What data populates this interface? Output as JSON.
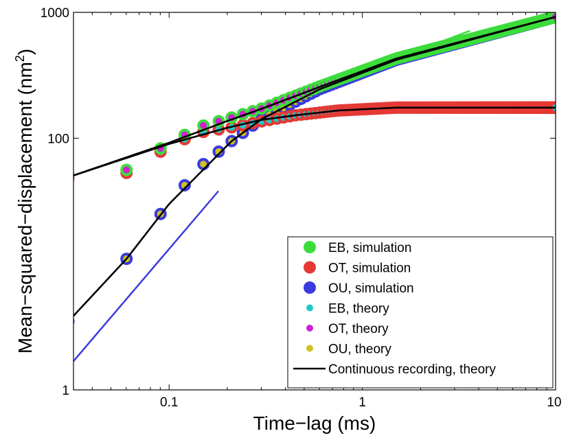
{
  "chart_data": {
    "type": "scatter",
    "xscale": "log",
    "yscale": "log",
    "xlim": [
      0.032,
      10
    ],
    "ylim": [
      1,
      1000
    ],
    "xlabel": "Time−lag (ms)",
    "ylabel_main": "Mean−squared−displacement (nm",
    "ylabel_sup": "2",
    "ylabel_close": ")",
    "x_ticks": [
      {
        "value": 0.1,
        "label": "0.1"
      },
      {
        "value": 1,
        "label": "1"
      },
      {
        "value": 10,
        "label": "10"
      }
    ],
    "y_ticks": [
      {
        "value": 1,
        "label": "1"
      },
      {
        "value": 100,
        "label": "100"
      },
      {
        "value": 1000,
        "label": "1000"
      }
    ],
    "grid": false,
    "legend_position": "bottom-right",
    "legend": [
      {
        "label": "EB, simulation",
        "color": "#3ddc3d",
        "kind": "big-dot"
      },
      {
        "label": "OT, simulation",
        "color": "#e53935",
        "kind": "big-dot"
      },
      {
        "label": "OU, simulation",
        "color": "#3a3ae0",
        "kind": "big-dot"
      },
      {
        "label": "EB, theory",
        "color": "#20c8c8",
        "kind": "small-dot"
      },
      {
        "label": "OT, theory",
        "color": "#d020d0",
        "kind": "small-dot"
      },
      {
        "label": "OU, theory",
        "color": "#d0c020",
        "kind": "small-dot"
      },
      {
        "label": "Continuous recording, theory",
        "color": "#000000",
        "kind": "line"
      }
    ],
    "series": [
      {
        "color": "#3ddc3d",
        "inner": "#d020d0",
        "dt": 0.0301,
        "n": 332,
        "samples": [
          [
            0.0301,
            51.0
          ],
          [
            0.0602,
            56.0
          ],
          [
            0.0903,
            83.0
          ],
          [
            0.12,
            106.0
          ],
          [
            0.15,
            126.0
          ],
          [
            0.211,
            146.0
          ],
          [
            0.301,
            172.0
          ],
          [
            0.602,
            258.0
          ],
          [
            1.5,
            430.0
          ],
          [
            10,
            920.0
          ]
        ]
      },
      {
        "color": "#e53935",
        "inner": "#20c8c8",
        "dt": 0.0301,
        "n": 332,
        "samples": [
          [
            0.0301,
            48.0
          ],
          [
            0.0602,
            53.0
          ],
          [
            0.0903,
            78.0
          ],
          [
            0.12,
            98.0
          ],
          [
            0.15,
            112.0
          ],
          [
            0.211,
            122.0
          ],
          [
            0.301,
            136.0
          ],
          [
            0.451,
            152.0
          ],
          [
            0.752,
            166.0
          ],
          [
            1.5,
            175.0
          ],
          [
            10,
            175.0
          ]
        ]
      },
      {
        "color": "#3a3ae0",
        "inner": "#d0c020",
        "dt": 0.0301,
        "n": 332,
        "samples": [
          [
            0.0301,
            3.5
          ],
          [
            0.0602,
            11.0
          ],
          [
            0.0903,
            25.0
          ],
          [
            0.12,
            42.0
          ],
          [
            0.15,
            62.0
          ],
          [
            0.211,
            95.0
          ],
          [
            0.301,
            142.0
          ],
          [
            0.602,
            245.0
          ],
          [
            1.5,
            420.0
          ],
          [
            10,
            920.0
          ]
        ]
      }
    ],
    "continuous_curves": [
      {
        "color": "#000000",
        "samples": [
          [
            0.0301,
            49.0
          ],
          [
            0.1,
            92.0
          ],
          [
            0.2,
            137.0
          ],
          [
            0.3,
            171.0
          ],
          [
            0.6,
            255.0
          ],
          [
            1.5,
            430.0
          ],
          [
            10,
            920.0
          ]
        ]
      },
      {
        "color": "#000000",
        "samples": [
          [
            0.0301,
            49.0
          ],
          [
            0.1,
            90.0
          ],
          [
            0.2,
            121.0
          ],
          [
            0.301,
            140.0
          ],
          [
            0.45,
            152.0
          ],
          [
            0.75,
            166.0
          ],
          [
            1.5,
            175.0
          ],
          [
            10,
            175.0
          ]
        ]
      },
      {
        "color": "#000000",
        "samples": [
          [
            0.0301,
            3.5
          ],
          [
            0.0602,
            11.0
          ],
          [
            0.1,
            30.0
          ],
          [
            0.211,
            95.0
          ],
          [
            0.301,
            142.0
          ],
          [
            0.602,
            245.0
          ],
          [
            1.5,
            420.0
          ],
          [
            10,
            920.0
          ]
        ]
      }
    ],
    "guide_lines": [
      {
        "name": "slope-half-guide",
        "color": "#3ddc3d",
        "from": [
          0.6,
          252.0
        ],
        "to": [
          3.6,
          713.0
        ]
      },
      {
        "name": "slope-one-guide",
        "color": "#3a3ae0",
        "from": [
          0.032,
          1.69
        ],
        "to": [
          0.18,
          38.0
        ]
      }
    ]
  }
}
